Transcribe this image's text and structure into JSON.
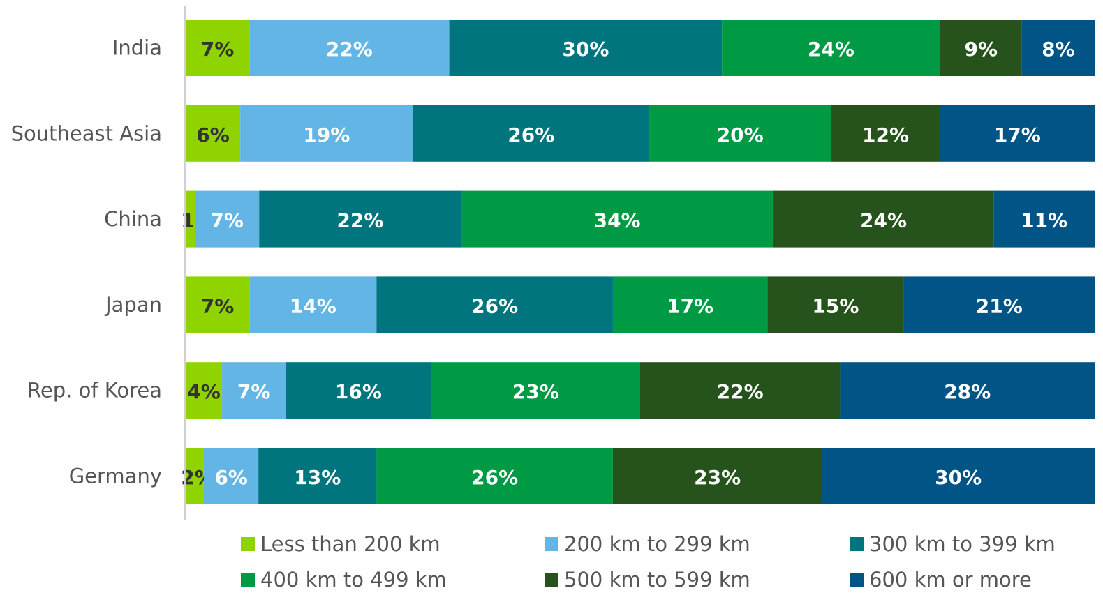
{
  "chart_data": {
    "type": "bar",
    "orientation": "horizontal",
    "stacked": "percent",
    "categories": [
      "India",
      "Southeast Asia",
      "China",
      "Japan",
      "Rep. of Korea",
      "Germany"
    ],
    "series": [
      {
        "name": "Less than 200 km",
        "color": "#8fd400",
        "label_color": "#333333",
        "values": [
          7,
          6,
          1,
          7,
          4,
          2
        ]
      },
      {
        "name": "200 km to 299 km",
        "color": "#62b5e5",
        "label_color": "#ffffff",
        "values": [
          22,
          19,
          7,
          14,
          7,
          6
        ]
      },
      {
        "name": "300 km to 399 km",
        "color": "#00757e",
        "label_color": "#ffffff",
        "values": [
          30,
          26,
          22,
          26,
          16,
          13
        ]
      },
      {
        "name": "400 km to 499 km",
        "color": "#009a44",
        "label_color": "#ffffff",
        "values": [
          24,
          20,
          34,
          17,
          23,
          26
        ]
      },
      {
        "name": "500 km to 599 km",
        "color": "#26531c",
        "label_color": "#ffffff",
        "values": [
          9,
          12,
          24,
          15,
          22,
          23
        ]
      },
      {
        "name": "600 km or more",
        "color": "#005587",
        "label_color": "#ffffff",
        "values": [
          8,
          17,
          11,
          21,
          28,
          30
        ]
      }
    ],
    "value_suffix": "%",
    "legend_position": "bottom",
    "grid": false
  }
}
